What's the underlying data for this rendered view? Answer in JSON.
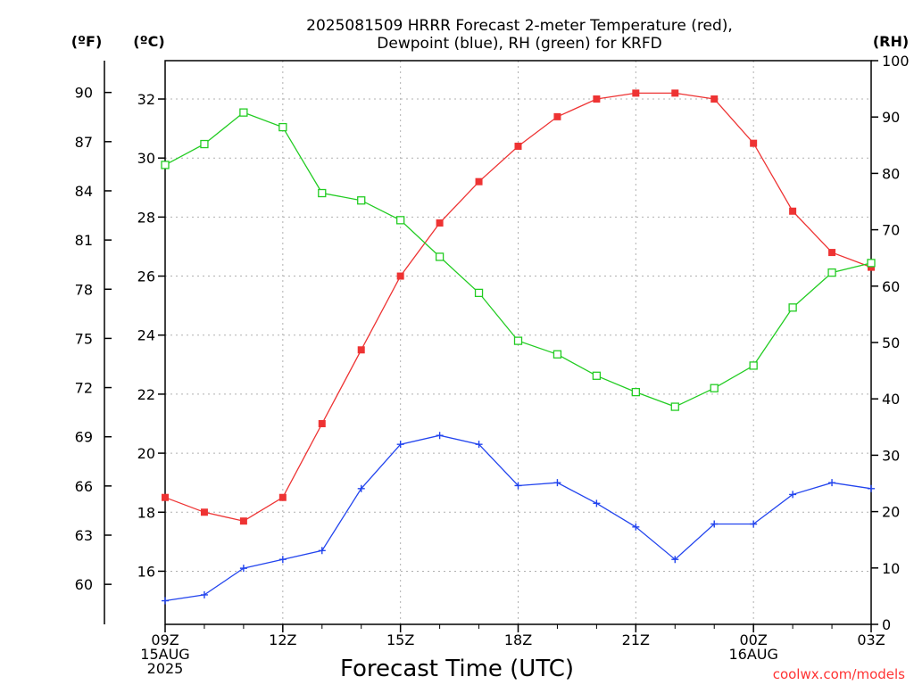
{
  "chart_data": {
    "type": "line",
    "title_lines": [
      "2025081509 HRRR Forecast 2-meter Temperature (red),",
      "Dewpoint (blue), RH (green) for KRFD"
    ],
    "xlabel": "Forecast Time (UTC)",
    "unit_labels": {
      "fahrenheit": "(ºF)",
      "celsius": "(ºC)",
      "rh": "(RH)"
    },
    "credit": "coolwx.com/models",
    "x_hours": [
      9,
      10,
      11,
      12,
      13,
      14,
      15,
      16,
      17,
      18,
      19,
      20,
      21,
      22,
      23,
      24,
      25,
      26,
      27
    ],
    "x_ticks": [
      {
        "hour": 9,
        "lines": [
          "09Z",
          "15AUG",
          "2025"
        ]
      },
      {
        "hour": 12,
        "lines": [
          "12Z"
        ]
      },
      {
        "hour": 15,
        "lines": [
          "15Z"
        ]
      },
      {
        "hour": 18,
        "lines": [
          "18Z"
        ]
      },
      {
        "hour": 21,
        "lines": [
          "21Z"
        ]
      },
      {
        "hour": 24,
        "lines": [
          "00Z",
          "16AUG"
        ]
      },
      {
        "hour": 27,
        "lines": [
          "03Z"
        ]
      }
    ],
    "celsius_axis": {
      "range": [
        14.2,
        33.3
      ],
      "ticks": [
        16,
        18,
        20,
        22,
        24,
        26,
        28,
        30,
        32
      ]
    },
    "fahrenheit_ticks": [
      60,
      63,
      66,
      69,
      72,
      75,
      78,
      81,
      84,
      87,
      90
    ],
    "rh_axis": {
      "range": [
        0,
        100
      ],
      "ticks": [
        0,
        10,
        20,
        30,
        40,
        50,
        60,
        70,
        80,
        90,
        100
      ]
    },
    "grid": true,
    "series": [
      {
        "name": "Temperature",
        "axis": "celsius",
        "color": "#ee3333",
        "marker": "filled-square",
        "values": [
          18.5,
          18.0,
          17.7,
          18.5,
          21.0,
          23.5,
          26.0,
          27.8,
          29.2,
          30.4,
          31.4,
          32.0,
          32.2,
          32.2,
          32.0,
          30.5,
          28.2,
          26.8,
          26.3
        ]
      },
      {
        "name": "Dewpoint",
        "axis": "celsius",
        "color": "#2244ee",
        "marker": "plus",
        "values": [
          15.0,
          15.2,
          16.1,
          16.4,
          16.7,
          18.8,
          20.3,
          20.6,
          20.3,
          18.9,
          19.0,
          18.3,
          17.5,
          16.4,
          17.6,
          17.6,
          18.6,
          19.0,
          18.8
        ]
      },
      {
        "name": "RH",
        "axis": "rh",
        "color": "#22cc22",
        "marker": "open-square",
        "values": [
          81.5,
          85.2,
          90.8,
          88.2,
          76.5,
          75.2,
          71.7,
          65.2,
          58.8,
          50.3,
          47.9,
          44.1,
          41.2,
          38.6,
          41.9,
          45.9,
          56.2,
          62.4,
          64.1
        ]
      }
    ]
  }
}
